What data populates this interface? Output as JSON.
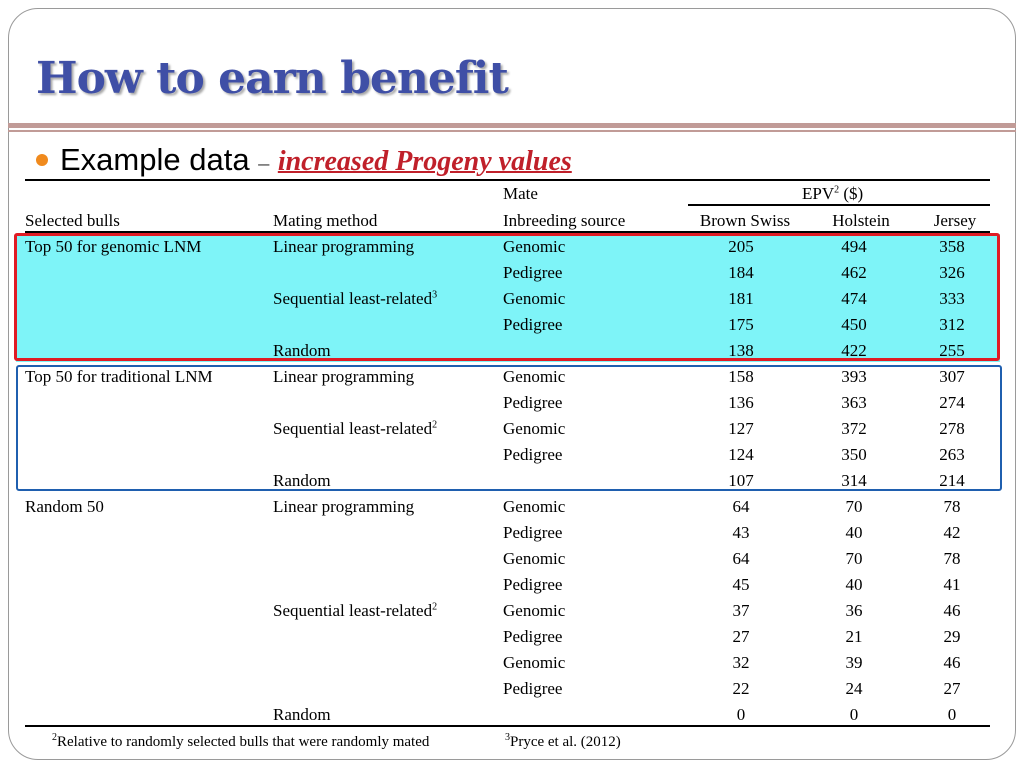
{
  "title": "How to earn benefit",
  "subtitle": {
    "text": "Example data",
    "dash": "–",
    "highlight": "increased Progeny values"
  },
  "table": {
    "header": {
      "mate": "Mate",
      "epv_group": "EPV",
      "epv_sup": "2",
      "epv_unit": " ($)",
      "selected_bulls": "Selected bulls",
      "mating_method": "Mating method",
      "inbreeding_source": "Inbreeding source",
      "brown_swiss": "Brown Swiss",
      "holstein": "Holstein",
      "jersey": "Jersey"
    },
    "rows": [
      {
        "bulls": "Top 50 for genomic LNM",
        "method": "Linear programming",
        "sup": "",
        "source": "Genomic",
        "bs": "205",
        "hol": "494",
        "jer": "358"
      },
      {
        "bulls": "",
        "method": "",
        "sup": "",
        "source": "Pedigree",
        "bs": "184",
        "hol": "462",
        "jer": "326"
      },
      {
        "bulls": "",
        "method": "Sequential least-related",
        "sup": "3",
        "source": "Genomic",
        "bs": "181",
        "hol": "474",
        "jer": "333"
      },
      {
        "bulls": "",
        "method": "",
        "sup": "",
        "source": "Pedigree",
        "bs": "175",
        "hol": "450",
        "jer": "312"
      },
      {
        "bulls": "",
        "method": "Random",
        "sup": "",
        "source": "",
        "bs": "138",
        "hol": "422",
        "jer": "255"
      },
      {
        "bulls": "Top 50 for traditional LNM",
        "method": "Linear programming",
        "sup": "",
        "source": "Genomic",
        "bs": "158",
        "hol": "393",
        "jer": "307"
      },
      {
        "bulls": "",
        "method": "",
        "sup": "",
        "source": "Pedigree",
        "bs": "136",
        "hol": "363",
        "jer": "274"
      },
      {
        "bulls": "",
        "method": "Sequential least-related",
        "sup": "2",
        "source": "Genomic",
        "bs": "127",
        "hol": "372",
        "jer": "278"
      },
      {
        "bulls": "",
        "method": "",
        "sup": "",
        "source": "Pedigree",
        "bs": "124",
        "hol": "350",
        "jer": "263"
      },
      {
        "bulls": "",
        "method": "Random",
        "sup": "",
        "source": "",
        "bs": "107",
        "hol": "314",
        "jer": "214"
      },
      {
        "bulls": "Random 50",
        "method": "Linear programming",
        "sup": "",
        "source": "Genomic",
        "bs": "64",
        "hol": "70",
        "jer": "78"
      },
      {
        "bulls": "",
        "method": "",
        "sup": "",
        "source": "Pedigree",
        "bs": "43",
        "hol": "40",
        "jer": "42"
      },
      {
        "bulls": "",
        "method": "",
        "sup": "",
        "source": "Genomic",
        "bs": "64",
        "hol": "70",
        "jer": "78"
      },
      {
        "bulls": "",
        "method": "",
        "sup": "",
        "source": "Pedigree",
        "bs": "45",
        "hol": "40",
        "jer": "41"
      },
      {
        "bulls": "",
        "method": "Sequential least-related",
        "sup": "2",
        "source": "Genomic",
        "bs": "37",
        "hol": "36",
        "jer": "46"
      },
      {
        "bulls": "",
        "method": "",
        "sup": "",
        "source": "Pedigree",
        "bs": "27",
        "hol": "21",
        "jer": "29"
      },
      {
        "bulls": "",
        "method": "",
        "sup": "",
        "source": "Genomic",
        "bs": "32",
        "hol": "39",
        "jer": "46"
      },
      {
        "bulls": "",
        "method": "",
        "sup": "",
        "source": "Pedigree",
        "bs": "22",
        "hol": "24",
        "jer": "27"
      },
      {
        "bulls": "",
        "method": "Random",
        "sup": "",
        "source": "",
        "bs": "0",
        "hol": "0",
        "jer": "0"
      }
    ]
  },
  "footnotes": {
    "note1_sup": "2",
    "note1": "Relative to randomly selected bulls that were randomly mated",
    "note2_sup": "3",
    "note2": "Pryce et al. (2012)"
  },
  "colors": {
    "title": "#3f4fa6",
    "bullet": "#f08a1d",
    "highlight_text": "#c0202a",
    "cyan_fill": "#7ef4f8",
    "red_box": "#e01b24",
    "blue_box": "#1f5faf",
    "rule": "#c19b97"
  }
}
